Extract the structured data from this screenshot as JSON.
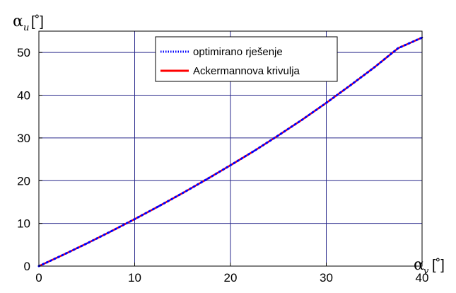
{
  "chart_data": {
    "type": "line",
    "xlabel": {
      "symbol": "α",
      "subscript": "v",
      "unit": "[˚]"
    },
    "ylabel": {
      "symbol": "α",
      "subscript": "u",
      "unit": "[˚]"
    },
    "xlim": [
      0,
      40
    ],
    "ylim": [
      0,
      55
    ],
    "xticks": [
      0,
      10,
      20,
      30,
      40
    ],
    "yticks": [
      0,
      10,
      20,
      30,
      40,
      50
    ],
    "grid": true,
    "legend_position": "top-center",
    "series": [
      {
        "name": "optimirano rješenje",
        "color": "#0000ff",
        "style": "dotted",
        "x": [
          0,
          2.5,
          5,
          7.5,
          10,
          12.5,
          15,
          17.5,
          20,
          22.5,
          25,
          27.5,
          30,
          32.5,
          35,
          37.5,
          40
        ],
        "y": [
          0,
          2.6,
          5.3,
          8.1,
          11.0,
          14.0,
          17.1,
          20.3,
          23.6,
          27.0,
          30.6,
          34.3,
          38.2,
          42.3,
          46.5,
          51.0,
          53.5
        ]
      },
      {
        "name": "Ackermannova krivulja",
        "color": "#ff0000",
        "style": "solid",
        "x": [
          0,
          2.5,
          5,
          7.5,
          10,
          12.5,
          15,
          17.5,
          20,
          22.5,
          25,
          27.5,
          30,
          32.5,
          35,
          37.5,
          40
        ],
        "y": [
          0,
          2.6,
          5.3,
          8.1,
          11.0,
          14.0,
          17.1,
          20.3,
          23.6,
          27.0,
          30.6,
          34.3,
          38.2,
          42.3,
          46.5,
          51.0,
          53.5
        ]
      }
    ]
  }
}
